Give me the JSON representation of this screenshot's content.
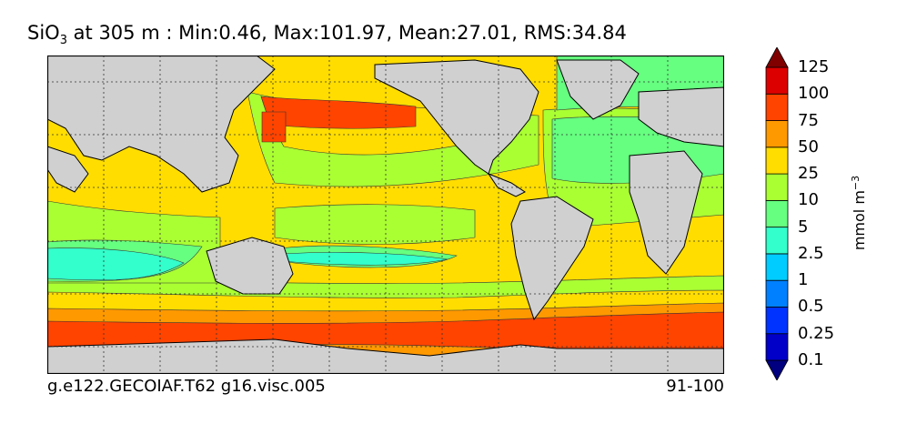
{
  "title": {
    "species_main": "SiO",
    "species_sub": "3",
    "rest": " at 305 m : Min:0.46, Max:101.97, Mean:27.01, RMS:34.84"
  },
  "colorbar": {
    "units_main": "mmol m",
    "units_sup": "−3",
    "ticks": [
      "125",
      "100",
      "75",
      "50",
      "25",
      "10",
      "5",
      "2.5",
      "1",
      "0.5",
      "0.25",
      "0.1"
    ],
    "colors": [
      "#000080",
      "#0000c8",
      "#0033ff",
      "#0080ff",
      "#00ccff",
      "#33ffcc",
      "#66ff80",
      "#aaff33",
      "#ffdd00",
      "#ff9900",
      "#ff4400",
      "#dd0000",
      "#800000"
    ]
  },
  "footer": {
    "left": "g.e122.GECOIAF.T62 g16.visc.005",
    "right": "91-100"
  },
  "map": {
    "land_color": "#d0d0d0",
    "missing_color": "#ffffff",
    "gridlines": "dotted"
  }
}
